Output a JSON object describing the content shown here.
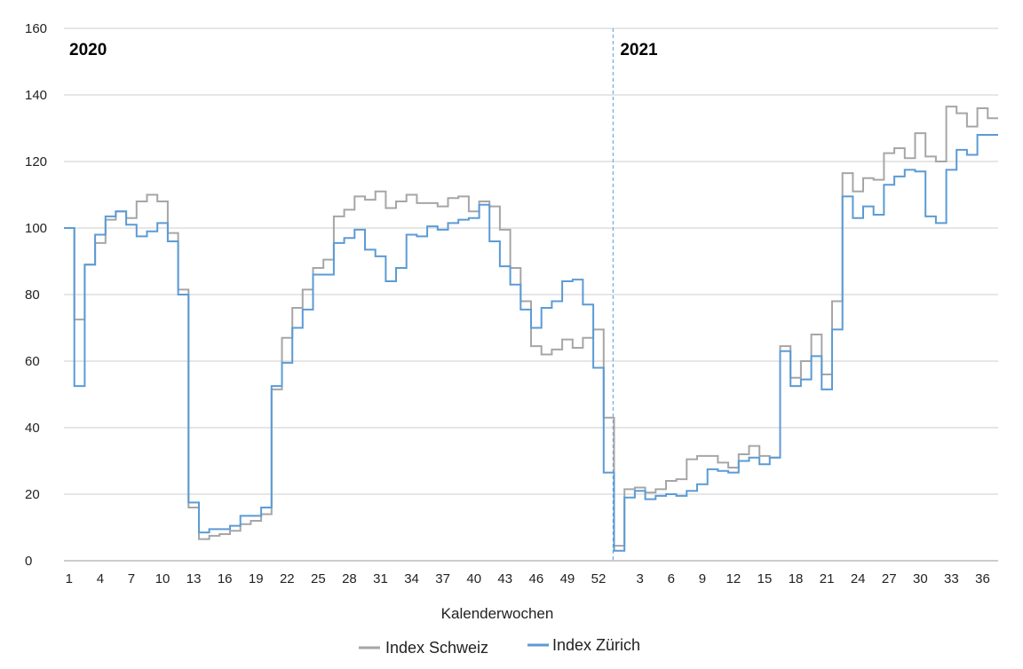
{
  "chart_data": {
    "type": "line",
    "step": true,
    "xlabel": "Kalenderwochen",
    "ylim": [
      0,
      160
    ],
    "yticks": [
      "0",
      "20",
      "40",
      "60",
      "80",
      "100",
      "120",
      "140",
      "160"
    ],
    "grid": true,
    "legend_position": "bottom-center",
    "year_labels": [
      "2020",
      "2021"
    ],
    "year_divider_week": "2021-1",
    "x_tick_labels": [
      "1",
      "4",
      "7",
      "10",
      "13",
      "16",
      "19",
      "22",
      "25",
      "28",
      "31",
      "34",
      "37",
      "40",
      "43",
      "46",
      "49",
      "52",
      "3",
      "6",
      "9",
      "12",
      "15",
      "18",
      "21",
      "24",
      "27",
      "30",
      "33",
      "36"
    ],
    "x": [
      "2020-1",
      "2020-2",
      "2020-3",
      "2020-4",
      "2020-5",
      "2020-6",
      "2020-7",
      "2020-8",
      "2020-9",
      "2020-10",
      "2020-11",
      "2020-12",
      "2020-13",
      "2020-14",
      "2020-15",
      "2020-16",
      "2020-17",
      "2020-18",
      "2020-19",
      "2020-20",
      "2020-21",
      "2020-22",
      "2020-23",
      "2020-24",
      "2020-25",
      "2020-26",
      "2020-27",
      "2020-28",
      "2020-29",
      "2020-30",
      "2020-31",
      "2020-32",
      "2020-33",
      "2020-34",
      "2020-35",
      "2020-36",
      "2020-37",
      "2020-38",
      "2020-39",
      "2020-40",
      "2020-41",
      "2020-42",
      "2020-43",
      "2020-44",
      "2020-45",
      "2020-46",
      "2020-47",
      "2020-48",
      "2020-49",
      "2020-50",
      "2020-51",
      "2020-52",
      "2020-53",
      "2021-1",
      "2021-2",
      "2021-3",
      "2021-4",
      "2021-5",
      "2021-6",
      "2021-7",
      "2021-8",
      "2021-9",
      "2021-10",
      "2021-11",
      "2021-12",
      "2021-13",
      "2021-14",
      "2021-15",
      "2021-16",
      "2021-17",
      "2021-18",
      "2021-19",
      "2021-20",
      "2021-21",
      "2021-22",
      "2021-23",
      "2021-24",
      "2021-25",
      "2021-26",
      "2021-27",
      "2021-28",
      "2021-29",
      "2021-30",
      "2021-31",
      "2021-32",
      "2021-33",
      "2021-34",
      "2021-35",
      "2021-36",
      "2021-37"
    ],
    "series": [
      {
        "name": "Index Schweiz",
        "color": "#a6a6a6",
        "values": [
          100,
          72.5,
          89,
          95.5,
          102.5,
          105,
          103,
          108,
          110,
          108,
          98.5,
          81.5,
          16,
          6.5,
          7.5,
          8,
          9,
          11,
          12,
          14,
          51.5,
          67,
          76,
          81.5,
          88,
          90.5,
          103.5,
          105.5,
          109.5,
          108.5,
          111,
          106,
          108,
          110,
          107.5,
          107.5,
          106.5,
          109,
          109.5,
          105,
          108,
          106.5,
          99.5,
          88,
          78,
          64.5,
          62,
          63.5,
          66.5,
          64,
          67,
          69.5,
          43,
          4.5,
          21.5,
          22,
          20.5,
          21.5,
          24,
          24.5,
          30.5,
          31.5,
          31.5,
          29.5,
          28,
          32,
          34.5,
          31.5,
          31,
          64.5,
          55,
          60,
          68,
          56,
          78,
          116.5,
          111,
          115,
          114.5,
          122.5,
          124,
          121,
          128.5,
          121.5,
          120,
          136.5,
          134.5,
          130.5,
          136,
          133
        ]
      },
      {
        "name": "Index Zürich",
        "color": "#5b9bd5",
        "values": [
          100,
          52.5,
          89,
          98,
          103.5,
          105,
          101,
          97.5,
          99,
          101.5,
          96,
          80,
          17.5,
          8.5,
          9.5,
          9.5,
          10.5,
          13.5,
          13.5,
          16,
          52.5,
          59.5,
          70,
          75.5,
          86,
          86,
          95.5,
          97,
          99.5,
          93.5,
          91.5,
          84,
          88,
          98,
          97.5,
          100.5,
          99.5,
          101.5,
          102.5,
          103,
          107,
          96,
          88.5,
          83,
          75.5,
          70,
          76,
          78,
          84,
          84.5,
          77,
          58,
          26.5,
          3,
          19,
          21,
          18.5,
          19.5,
          20,
          19.5,
          21,
          23,
          27.5,
          27,
          26.5,
          30,
          31,
          29,
          31,
          63,
          52.5,
          54.5,
          61.5,
          51.5,
          69.5,
          109.5,
          103,
          106.5,
          104,
          113,
          115.5,
          117.5,
          117,
          103.5,
          101.5,
          117.5,
          123.5,
          122,
          128,
          128
        ]
      }
    ]
  }
}
